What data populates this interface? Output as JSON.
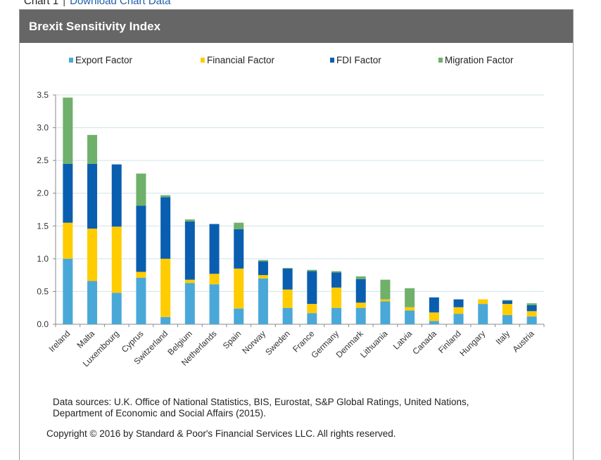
{
  "top": {
    "chart_label": "Chart 1",
    "separator": "|",
    "download_link": "Download Chart Data"
  },
  "panel": {
    "title": "Brexit Sensitivity Index"
  },
  "footer": {
    "sources_line1": "Data sources: U.K. Office of National Statistics, BIS, Eurostat, S&P Global Ratings, United Nations,",
    "sources_line2": "Department of Economic and Social Affairs (2015).",
    "copyright": "Copyright © 2016 by Standard & Poor's Financial Services LLC. All rights reserved."
  },
  "chart_data": {
    "type": "bar",
    "stacked": true,
    "title": "Brexit Sensitivity Index",
    "xlabel": "",
    "ylabel": "",
    "ylim": [
      0,
      3.5
    ],
    "yticks": [
      0.0,
      0.5,
      1.0,
      1.5,
      2.0,
      2.5,
      3.0,
      3.5
    ],
    "ytick_labels": [
      "0.0",
      "0.5",
      "1.0",
      "1.5",
      "2.0",
      "2.5",
      "3.0",
      "3.5"
    ],
    "grid": true,
    "legend_position": "top",
    "categories": [
      "Ireland",
      "Malta",
      "Luxembourg",
      "Cyprus",
      "Switzerland",
      "Belgium",
      "Netherlands",
      "Spain",
      "Norway",
      "Sweden",
      "France",
      "Germany",
      "Denmark",
      "Lithuania",
      "Latvia",
      "Canada",
      "Finland",
      "Hungary",
      "Italy",
      "Austria"
    ],
    "series": [
      {
        "name": "Export Factor",
        "color": "#4aa8d8",
        "values": [
          1.0,
          0.66,
          0.48,
          0.71,
          0.11,
          0.63,
          0.61,
          0.24,
          0.7,
          0.25,
          0.17,
          0.25,
          0.25,
          0.35,
          0.21,
          0.05,
          0.16,
          0.31,
          0.14,
          0.12
        ]
      },
      {
        "name": "Financial Factor",
        "color": "#ffcc00",
        "values": [
          0.55,
          0.8,
          1.01,
          0.09,
          0.89,
          0.05,
          0.16,
          0.61,
          0.05,
          0.28,
          0.14,
          0.31,
          0.08,
          0.03,
          0.05,
          0.13,
          0.1,
          0.07,
          0.17,
          0.08
        ]
      },
      {
        "name": "FDI Factor",
        "color": "#0a5eb0",
        "values": [
          0.9,
          0.99,
          0.95,
          1.01,
          0.94,
          0.89,
          0.76,
          0.6,
          0.21,
          0.32,
          0.5,
          0.23,
          0.36,
          0.0,
          0.0,
          0.23,
          0.12,
          0.0,
          0.05,
          0.09
        ]
      },
      {
        "name": "Migration Factor",
        "color": "#6fb06a",
        "values": [
          1.01,
          0.44,
          0.0,
          0.49,
          0.03,
          0.03,
          0.0,
          0.1,
          0.02,
          0.01,
          0.02,
          0.02,
          0.04,
          0.3,
          0.29,
          0.0,
          0.0,
          0.0,
          0.01,
          0.03
        ]
      }
    ]
  }
}
